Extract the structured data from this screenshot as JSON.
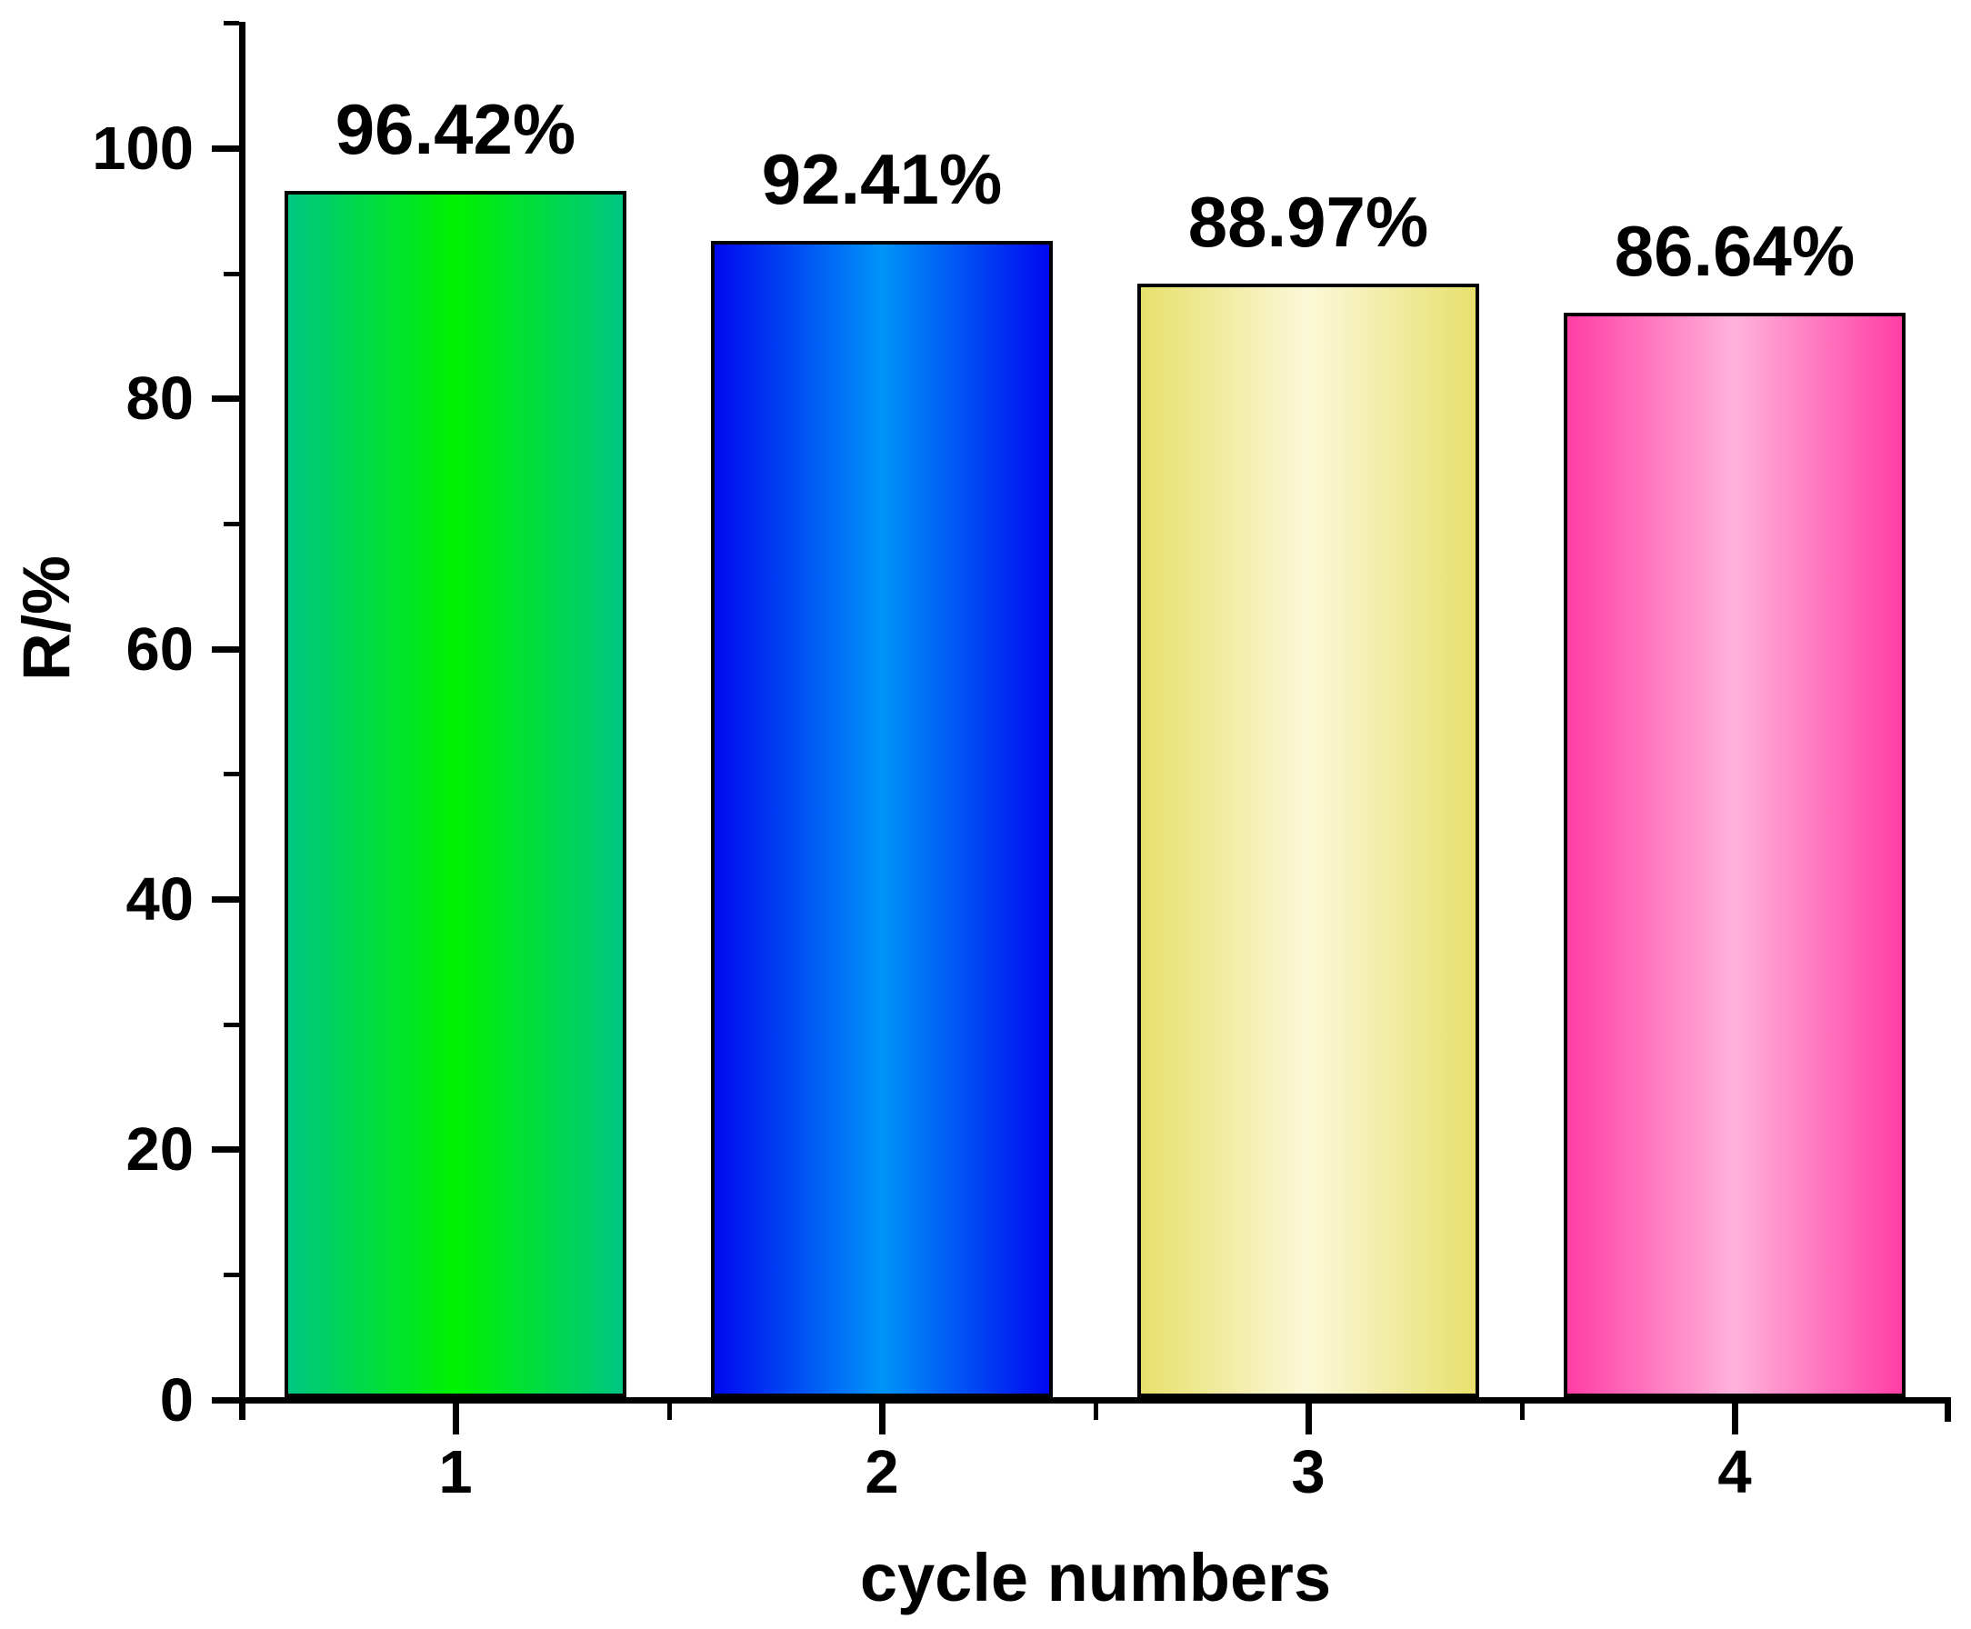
{
  "chart_data": {
    "type": "bar",
    "title": "",
    "categories": [
      "1",
      "2",
      "3",
      "4"
    ],
    "values": [
      96.42,
      92.41,
      88.97,
      86.64
    ],
    "value_labels": [
      "96.42%",
      "92.41%",
      "88.97%",
      "86.64%"
    ],
    "xlabel": "cycle numbers",
    "ylabel": "R/%",
    "ylim": [
      0,
      110
    ],
    "yticks_major": [
      0,
      20,
      40,
      60,
      80,
      100
    ],
    "yticks_minor": [
      10,
      30,
      50,
      70,
      90,
      110
    ],
    "grid": false,
    "legend": "none",
    "axis_color": "#000000",
    "bar_border_color": "#000000",
    "bar_gradients": [
      {
        "edge": "#00C682",
        "center": "#00F200"
      },
      {
        "edge": "#0008F0",
        "center": "#0095F8"
      },
      {
        "edge": "#E8E06C",
        "center": "#FBF8D8"
      },
      {
        "edge": "#FF3EA4",
        "center": "#FFB2DC"
      }
    ]
  }
}
